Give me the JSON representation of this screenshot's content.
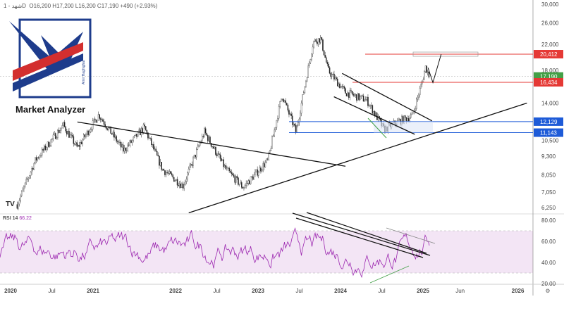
{
  "header": {
    "symbol": "شهد",
    "interval": "1D",
    "ohlc": "O16,200  H17,200  L16,200  C17,190  +490 (+2.93%)"
  },
  "logo": {
    "name": "Market Analyzer",
    "tagline": "Amir Haghighat"
  },
  "rsi_label": {
    "name": "RSI 14",
    "value": "66.22"
  },
  "chart_data": [
    {
      "type": "candlestick",
      "title": "شهد - 1D",
      "yscale": "log",
      "ylim": [
        6000,
        31000
      ],
      "ytick_labels": [
        "30,000",
        "26,000",
        "22,000",
        "18,000",
        "14,000",
        "10,500",
        "9,300",
        "8,050",
        "7,050",
        "6,250"
      ],
      "yticks": [
        30000,
        26000,
        22000,
        18000,
        14000,
        10500,
        9300,
        8050,
        7050,
        6250
      ],
      "xtick_labels": [
        "2020",
        "Jul",
        "2021",
        "2022",
        "Jul",
        "2023",
        "Jul",
        "2024",
        "Jul",
        "2025",
        "Jun",
        "2026"
      ],
      "xticks": [
        2020,
        2020.5,
        2021,
        2022,
        2022.5,
        2023,
        2023.5,
        2024,
        2024.5,
        2025,
        2025.45,
        2026.15
      ],
      "price_path": [
        [
          2020.08,
          6400
        ],
        [
          2020.3,
          9000
        ],
        [
          2020.64,
          11800
        ],
        [
          2020.81,
          9900
        ],
        [
          2021.07,
          12800
        ],
        [
          2021.37,
          9700
        ],
        [
          2021.62,
          11600
        ],
        [
          2021.84,
          8400
        ],
        [
          2022.09,
          7400
        ],
        [
          2022.35,
          11200
        ],
        [
          2022.61,
          8400
        ],
        [
          2022.82,
          7300
        ],
        [
          2023.12,
          9000
        ],
        [
          2023.29,
          14900
        ],
        [
          2023.46,
          11200
        ],
        [
          2023.67,
          22500
        ],
        [
          2023.76,
          23000
        ],
        [
          2023.85,
          18000
        ],
        [
          2024.06,
          15200
        ],
        [
          2024.32,
          14300
        ],
        [
          2024.53,
          11400
        ],
        [
          2024.66,
          12000
        ],
        [
          2024.87,
          12700
        ],
        [
          2024.99,
          16500
        ],
        [
          2025.03,
          18500
        ],
        [
          2025.08,
          17190
        ]
      ],
      "price_labels": [
        {
          "value": "20,412",
          "color": "#e53935"
        },
        {
          "value": "17,190",
          "color": "#43a047"
        },
        {
          "value": "16,434",
          "color": "#e53935"
        },
        {
          "value": "12,129",
          "color": "#1e5bd8"
        },
        {
          "value": "11,143",
          "color": "#1e5bd8"
        }
      ],
      "levels": [
        {
          "price": 20412,
          "color": "#e53935"
        },
        {
          "price": 16434,
          "color": "#e53935"
        },
        {
          "price": 12129,
          "color": "#1e5bd8"
        },
        {
          "price": 11143,
          "color": "#1e5bd8"
        }
      ],
      "trendlines": [
        [
          [
            2020.81,
            12100
          ],
          [
            2024.06,
            8600
          ]
        ],
        [
          [
            2022.16,
            6000
          ],
          [
            2026.26,
            14000
          ]
        ],
        [
          [
            2024.02,
            17600
          ],
          [
            2025.11,
            12200
          ]
        ],
        [
          [
            2023.92,
            14700
          ],
          [
            2024.9,
            11000
          ]
        ]
      ],
      "projection": [
        [
          2025.06,
          18400
        ],
        [
          2025.12,
          16400
        ],
        [
          2025.22,
          20400
        ]
      ]
    },
    {
      "type": "line",
      "name": "RSI 14",
      "ylim": [
        20,
        85
      ],
      "band": [
        30,
        70
      ],
      "ytick_labels": [
        "80.00",
        "60.00",
        "40.00",
        "20.00"
      ],
      "yticks": [
        80,
        60,
        40,
        20
      ],
      "last": 66.22,
      "color": "#9c27b0"
    }
  ]
}
